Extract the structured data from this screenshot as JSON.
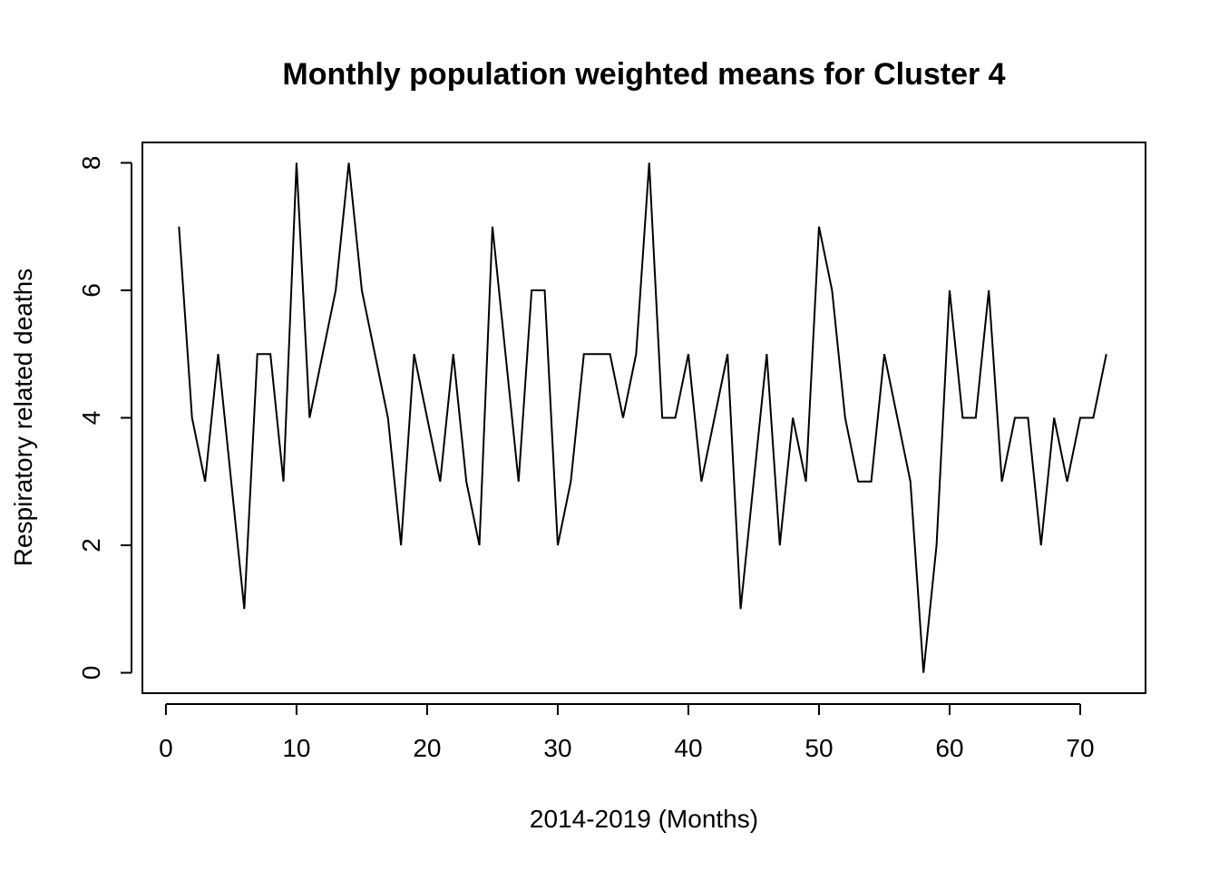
{
  "chart_data": {
    "type": "line",
    "title": "Monthly population weighted means for Cluster 4",
    "xlabel": "2014-2019 (Months)",
    "ylabel": "Respiratory related deaths",
    "xlim": [
      -1.8,
      75
    ],
    "ylim": [
      -0.32,
      8.32
    ],
    "xticks": [
      0,
      10,
      20,
      30,
      40,
      50,
      60,
      70
    ],
    "yticks": [
      0,
      2,
      4,
      6,
      8
    ],
    "grid": false,
    "legend": "none",
    "series_color": "#000000",
    "x": [
      1,
      2,
      3,
      4,
      5,
      6,
      7,
      8,
      9,
      10,
      11,
      12,
      13,
      14,
      15,
      16,
      17,
      18,
      19,
      20,
      21,
      22,
      23,
      24,
      25,
      26,
      27,
      28,
      29,
      30,
      31,
      32,
      33,
      34,
      35,
      36,
      37,
      38,
      39,
      40,
      41,
      42,
      43,
      44,
      45,
      46,
      47,
      48,
      49,
      50,
      51,
      52,
      53,
      54,
      55,
      56,
      57,
      58,
      59,
      60,
      61,
      62,
      63,
      64,
      65,
      66,
      67,
      68,
      69,
      70,
      71,
      72
    ],
    "series": [
      {
        "values": [
          7,
          4,
          3,
          5,
          3,
          1,
          5,
          5,
          3,
          8,
          4,
          5,
          6,
          8,
          6,
          5,
          4,
          2,
          5,
          4,
          3,
          5,
          3,
          2,
          7,
          5,
          3,
          6,
          6,
          2,
          3,
          5,
          5,
          5,
          4,
          5,
          8,
          4,
          4,
          5,
          3,
          4,
          5,
          1,
          3,
          5,
          2,
          4,
          3,
          7,
          6,
          4,
          3,
          3,
          5,
          4,
          3,
          0,
          2,
          6,
          4,
          4,
          6,
          3,
          4,
          4,
          2,
          4,
          3,
          4,
          4,
          5
        ]
      }
    ]
  }
}
